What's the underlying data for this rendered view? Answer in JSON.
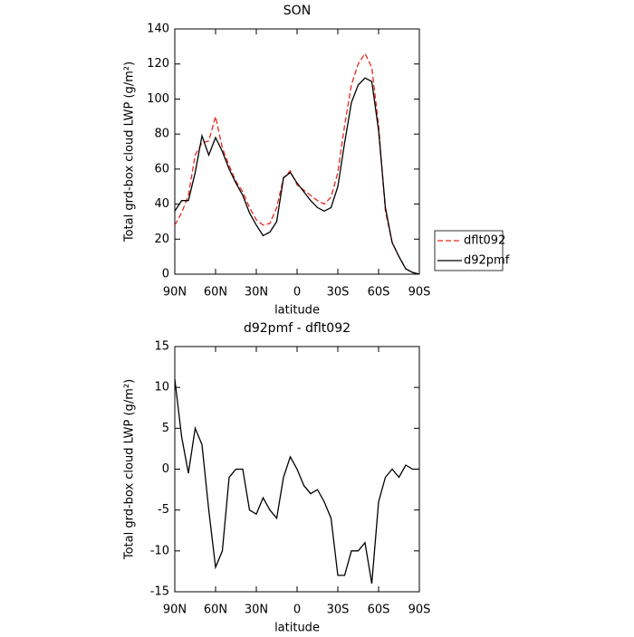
{
  "chart_data": [
    {
      "type": "line",
      "title": "SON",
      "xlabel": "latitude",
      "ylabel": "Total grd-box cloud LWP (g/m²)",
      "x": [
        90,
        85,
        80,
        75,
        70,
        65,
        60,
        55,
        50,
        45,
        40,
        35,
        30,
        25,
        20,
        15,
        10,
        5,
        0,
        -5,
        -10,
        -15,
        -20,
        -25,
        -30,
        -35,
        -40,
        -45,
        -50,
        -55,
        -60,
        -65,
        -70,
        -75,
        -80,
        -85,
        -90
      ],
      "series": [
        {
          "name": "dflt092",
          "color": "#e8281e",
          "line_style": "dashed",
          "values": [
            28,
            35,
            45,
            68,
            75,
            76,
            90,
            72,
            62,
            53,
            47,
            38,
            31,
            28,
            29,
            38,
            55,
            59,
            51,
            48,
            45,
            42,
            40,
            44,
            58,
            85,
            108,
            120,
            126,
            118,
            85,
            36,
            18,
            10,
            3,
            1,
            0
          ]
        },
        {
          "name": "d92pmf",
          "color": "#000000",
          "line_style": "solid",
          "values": [
            36,
            42,
            42,
            58,
            79,
            68,
            78,
            70,
            60,
            52,
            45,
            35,
            28,
            22,
            24,
            30,
            55,
            58,
            52,
            47,
            42,
            38,
            36,
            38,
            50,
            75,
            98,
            108,
            112,
            110,
            82,
            38,
            18,
            10,
            3,
            1,
            0
          ]
        }
      ],
      "xlim": [
        90,
        -90
      ],
      "xticks": [
        {
          "value": 90,
          "label": "90N"
        },
        {
          "value": 60,
          "label": "60N"
        },
        {
          "value": 30,
          "label": "30N"
        },
        0,
        {
          "value": -30,
          "label": "30S"
        },
        {
          "value": -60,
          "label": "60S"
        },
        {
          "value": -90,
          "label": "90S"
        }
      ],
      "ylim": [
        0,
        140
      ],
      "yticks": [
        0,
        20,
        40,
        60,
        80,
        100,
        120,
        140
      ],
      "legend": "right"
    },
    {
      "type": "line",
      "title": "d92pmf - dflt092",
      "xlabel": "latitude",
      "ylabel": "Total grd-box cloud LWP (g/m²)",
      "x": [
        90,
        85,
        80,
        75,
        70,
        65,
        60,
        55,
        50,
        45,
        40,
        35,
        30,
        25,
        20,
        15,
        10,
        5,
        0,
        -5,
        -10,
        -15,
        -20,
        -25,
        -30,
        -35,
        -40,
        -45,
        -50,
        -55,
        -60,
        -65,
        -70,
        -75,
        -80,
        -85,
        -90
      ],
      "series": [
        {
          "color": "#000000",
          "line_style": "solid",
          "values": [
            11,
            4,
            -0.5,
            5,
            3,
            -5,
            -12,
            -10,
            -1,
            0,
            0,
            -5,
            -5.5,
            -3.5,
            -5,
            -6,
            -1,
            1.5,
            0,
            -2,
            -3,
            -2.5,
            -4,
            -6,
            -13,
            -13,
            -10,
            -10,
            -9,
            -14,
            -4,
            -1,
            0,
            -1,
            0.5,
            0,
            0
          ]
        }
      ],
      "xlim": [
        90,
        -90
      ],
      "xticks": [
        {
          "value": 90,
          "label": "90N"
        },
        {
          "value": 60,
          "label": "60N"
        },
        {
          "value": 30,
          "label": "30N"
        },
        0,
        {
          "value": -30,
          "label": "30S"
        },
        {
          "value": -60,
          "label": "60S"
        },
        {
          "value": -90,
          "label": "90S"
        }
      ],
      "ylim": [
        -15,
        15
      ],
      "yticks": [
        -15,
        -10,
        -5,
        0,
        5,
        10,
        15
      ]
    }
  ]
}
